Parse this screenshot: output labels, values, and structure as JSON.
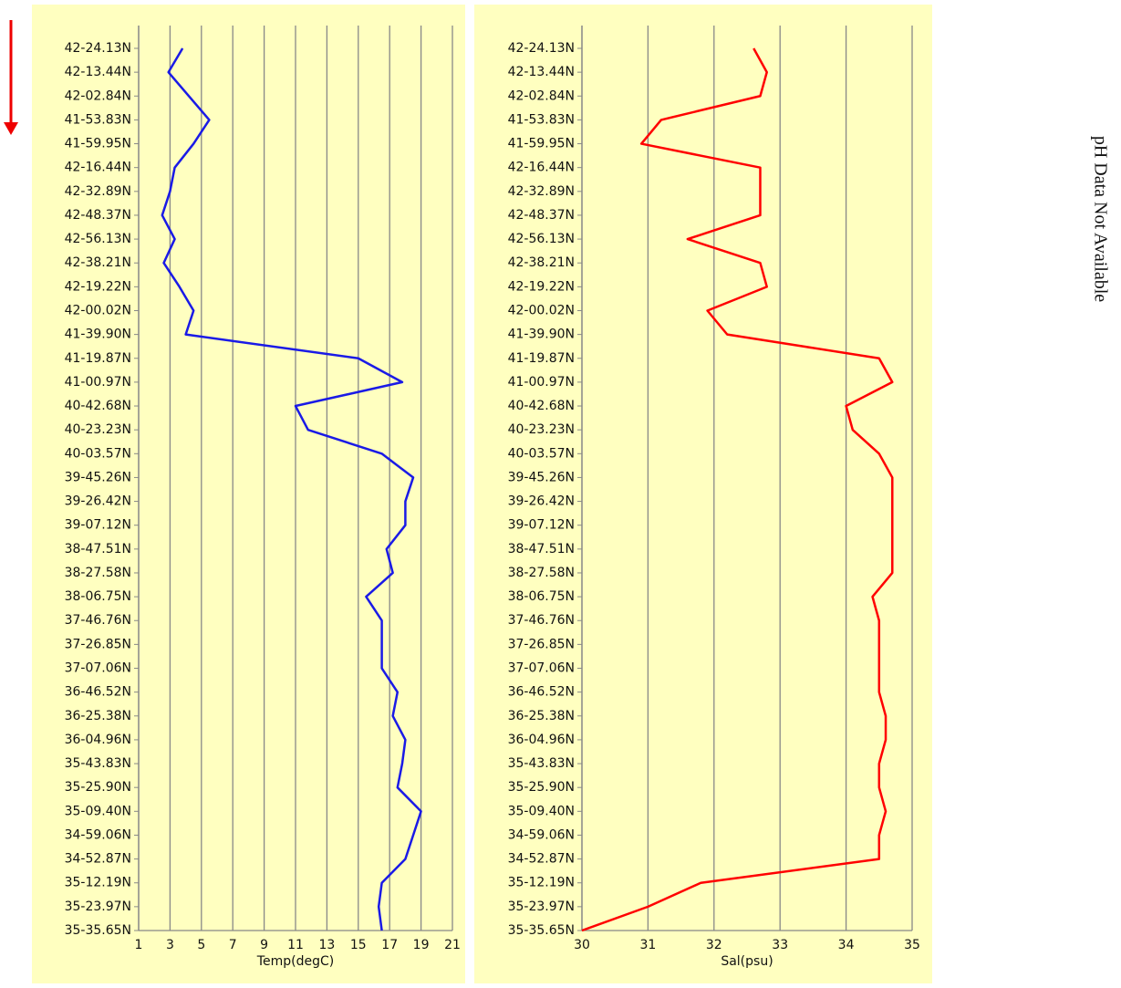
{
  "chart_data": [
    {
      "type": "line",
      "orientation": "horizontal",
      "xlabel": "Temp(degC)",
      "grid": true,
      "categories": [
        "42-24.13N",
        "42-13.44N",
        "42-02.84N",
        "41-53.83N",
        "41-59.95N",
        "42-16.44N",
        "42-32.89N",
        "42-48.37N",
        "42-56.13N",
        "42-38.21N",
        "42-19.22N",
        "42-00.02N",
        "41-39.90N",
        "41-19.87N",
        "41-00.97N",
        "40-42.68N",
        "40-23.23N",
        "40-03.57N",
        "39-45.26N",
        "39-26.42N",
        "39-07.12N",
        "38-47.51N",
        "38-27.58N",
        "38-06.75N",
        "37-46.76N",
        "37-26.85N",
        "37-07.06N",
        "36-46.52N",
        "36-25.38N",
        "36-04.96N",
        "35-43.83N",
        "35-25.90N",
        "35-09.40N",
        "34-59.06N",
        "34-52.87N",
        "35-12.19N",
        "35-23.97N",
        "35-35.65N"
      ],
      "series": [
        {
          "color": "#1a1ae6",
          "values": [
            3.8,
            2.9,
            4.2,
            5.5,
            4.5,
            3.3,
            3.0,
            2.5,
            3.3,
            2.6,
            3.6,
            4.5,
            4.0,
            15.0,
            17.8,
            11.0,
            11.8,
            16.5,
            18.5,
            18.0,
            18.0,
            16.8,
            17.2,
            15.5,
            16.5,
            16.5,
            16.5,
            17.5,
            17.2,
            18.0,
            17.8,
            17.5,
            19.0,
            18.5,
            18.0,
            16.5,
            16.3,
            16.5
          ]
        }
      ],
      "xlim": [
        1,
        21
      ],
      "xticks": [
        1,
        3,
        5,
        7,
        9,
        11,
        13,
        15,
        17,
        19,
        21
      ]
    },
    {
      "type": "line",
      "orientation": "horizontal",
      "xlabel": "Sal(psu)",
      "grid": true,
      "categories": [
        "42-24.13N",
        "42-13.44N",
        "42-02.84N",
        "41-53.83N",
        "41-59.95N",
        "42-16.44N",
        "42-32.89N",
        "42-48.37N",
        "42-56.13N",
        "42-38.21N",
        "42-19.22N",
        "42-00.02N",
        "41-39.90N",
        "41-19.87N",
        "41-00.97N",
        "40-42.68N",
        "40-23.23N",
        "40-03.57N",
        "39-45.26N",
        "39-26.42N",
        "39-07.12N",
        "38-47.51N",
        "38-27.58N",
        "38-06.75N",
        "37-46.76N",
        "37-26.85N",
        "37-07.06N",
        "36-46.52N",
        "36-25.38N",
        "36-04.96N",
        "35-43.83N",
        "35-25.90N",
        "35-09.40N",
        "34-59.06N",
        "34-52.87N",
        "35-12.19N",
        "35-23.97N",
        "35-35.65N"
      ],
      "series": [
        {
          "color": "#ff0000",
          "values": [
            32.6,
            32.8,
            32.7,
            31.2,
            30.9,
            32.7,
            32.7,
            32.7,
            31.6,
            32.7,
            32.8,
            31.9,
            32.2,
            34.5,
            34.7,
            34.0,
            34.1,
            34.5,
            34.7,
            34.7,
            34.7,
            34.7,
            34.7,
            34.4,
            34.5,
            34.5,
            34.5,
            34.5,
            34.6,
            34.6,
            34.5,
            34.5,
            34.6,
            34.5,
            34.5,
            31.8,
            31.0,
            30.0
          ]
        }
      ],
      "xlim": [
        30,
        35
      ],
      "xticks": [
        30,
        31,
        32,
        33,
        34,
        35
      ]
    }
  ],
  "side_text": "pH Data Not Available"
}
